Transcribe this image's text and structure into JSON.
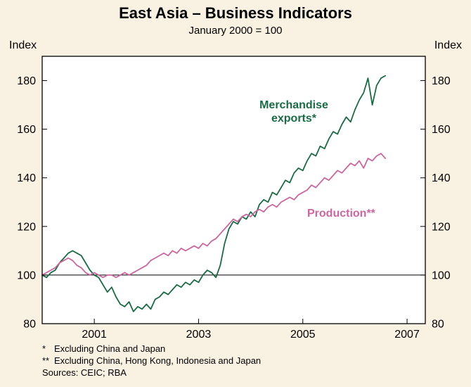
{
  "title": "East Asia – Business Indicators",
  "subtitle": "January 2000 = 100",
  "axis": {
    "left_label": "Index",
    "right_label": "Index"
  },
  "colors": {
    "exports": "#1a6b45",
    "production": "#c9679f",
    "background": "#f9f1e1",
    "plot_background": "#ffffff",
    "axis": "#000000"
  },
  "series_labels": {
    "exports": "Merchandise\nexports*",
    "production": "Production**"
  },
  "footnotes": [
    {
      "marker": "*",
      "text": "Excluding China and Japan"
    },
    {
      "marker": "**",
      "text": "Excluding China, Hong Kong, Indonesia and Japan"
    }
  ],
  "sources": "Sources: CEIC; RBA",
  "chart_data": {
    "type": "line",
    "title": "East Asia – Business Indicators",
    "subtitle": "January 2000 = 100",
    "xlabel": "",
    "ylabel": "Index",
    "x_start_year": 2000.0,
    "x_step_years": 0.0833333,
    "xlim": [
      2000,
      2007.35
    ],
    "ylim": [
      80,
      190
    ],
    "xticks": [
      2001,
      2003,
      2005,
      2007
    ],
    "yticks": [
      80,
      100,
      120,
      140,
      160,
      180
    ],
    "reference_line": 100,
    "grid": false,
    "legend_position": "inline-labels",
    "series": [
      {
        "name": "Merchandise exports*",
        "color_key": "exports",
        "values": [
          100,
          99,
          101,
          102,
          105,
          107,
          109,
          110,
          109,
          108,
          105,
          102,
          100,
          99,
          96,
          93,
          95,
          91,
          88,
          87,
          89,
          85,
          87,
          86,
          88,
          86,
          90,
          91,
          93,
          92,
          94,
          96,
          95,
          97,
          96,
          98,
          97,
          100,
          102,
          101,
          99,
          104,
          113,
          119,
          122,
          121,
          124,
          123,
          126,
          124,
          129,
          131,
          130,
          134,
          133,
          136,
          139,
          138,
          142,
          144,
          143,
          147,
          150,
          149,
          153,
          152,
          156,
          159,
          158,
          162,
          165,
          163,
          168,
          172,
          175,
          181,
          170,
          178,
          181,
          182
        ]
      },
      {
        "name": "Production**",
        "color_key": "production",
        "values": [
          100,
          101,
          102,
          103,
          105,
          106,
          107,
          106,
          104,
          103,
          101,
          100,
          101,
          100,
          99,
          100,
          100,
          99,
          100,
          101,
          100,
          101,
          102,
          103,
          104,
          106,
          107,
          108,
          109,
          108,
          110,
          109,
          111,
          110,
          111,
          112,
          111,
          113,
          112,
          114,
          115,
          117,
          119,
          121,
          123,
          122,
          124,
          125,
          124,
          126,
          127,
          126,
          128,
          129,
          128,
          130,
          131,
          132,
          131,
          133,
          134,
          135,
          137,
          136,
          138,
          140,
          139,
          141,
          143,
          142,
          144,
          146,
          145,
          147,
          144,
          148,
          147,
          149,
          150,
          148
        ]
      }
    ]
  }
}
